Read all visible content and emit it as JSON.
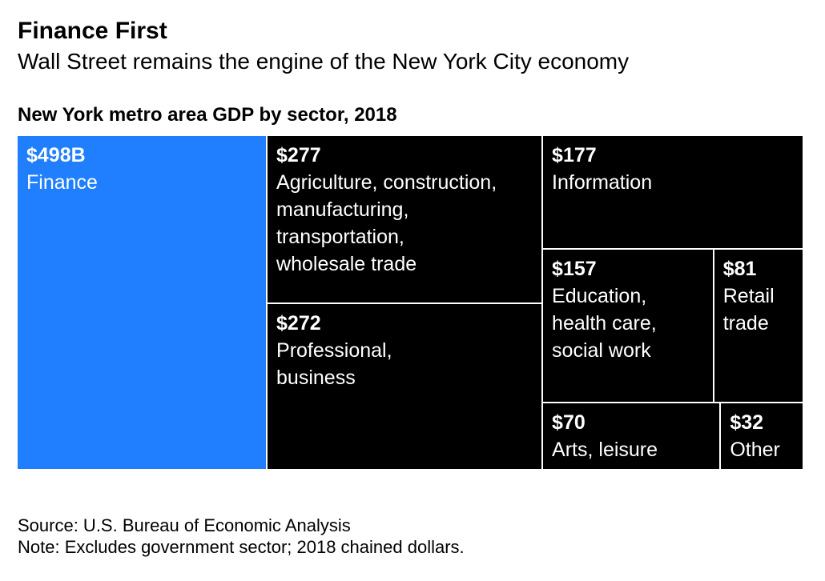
{
  "header": {
    "title": "Finance First",
    "subtitle": "Wall Street remains the engine of the New York City economy",
    "chart_title": "New York metro area GDP by sector, 2018"
  },
  "chart_data": {
    "type": "treemap",
    "title": "New York metro area GDP by sector, 2018",
    "unit": "billions of 2018 chained dollars",
    "items": [
      {
        "value_label": "$498B",
        "value": 498,
        "label": "Finance",
        "color": "#1f7fff"
      },
      {
        "value_label": "$277",
        "value": 277,
        "label": "Agriculture, construction,\nmanufacturing,\ntransportation,\nwholesale trade",
        "color": "#000000"
      },
      {
        "value_label": "$272",
        "value": 272,
        "label": "Professional,\nbusiness",
        "color": "#000000"
      },
      {
        "value_label": "$177",
        "value": 177,
        "label": "Information",
        "color": "#000000"
      },
      {
        "value_label": "$157",
        "value": 157,
        "label": "Education,\nhealth care,\nsocial work",
        "color": "#000000"
      },
      {
        "value_label": "$81",
        "value": 81,
        "label": "Retail\ntrade",
        "color": "#000000"
      },
      {
        "value_label": "$70",
        "value": 70,
        "label": "Arts, leisure",
        "color": "#000000"
      },
      {
        "value_label": "$32",
        "value": 32,
        "label": "Other",
        "color": "#000000"
      }
    ]
  },
  "footer": {
    "source": "Source: U.S. Bureau of Economic Analysis",
    "note": "Note: Excludes government sector; 2018 chained dollars."
  }
}
